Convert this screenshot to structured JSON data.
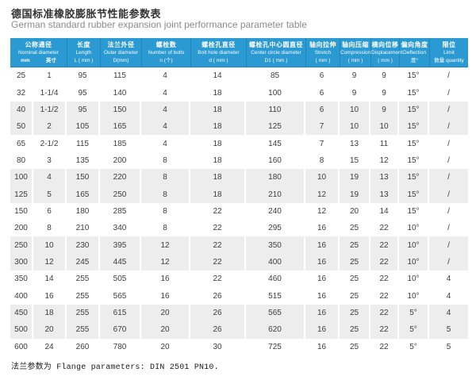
{
  "page": {
    "title_zh": "德国标准橡胶膨胀节性能参数表",
    "title_en": "German standard rubber expansion joint performance parameter table",
    "footer_note": "法兰参数为 Flange parameters: DIN 2501 PN10."
  },
  "colors": {
    "header_bg": "#2C9AD2",
    "header_divider": "#1E86B9",
    "row_alt_bg": "#EDEDED",
    "title_text": "#333333",
    "subtitle_text": "#8C8C8C",
    "body_text": "#3D3D3D",
    "footer_text": "#1A1A1A"
  },
  "table": {
    "columns": [
      {
        "zh": "公称通径",
        "en": "Nominal diameter",
        "unit_left": "mm",
        "unit_right": "英寸"
      },
      {
        "zh": "长度",
        "en": "Length",
        "unit": "L ( mm )"
      },
      {
        "zh": "法兰外径",
        "en": "Outer diameter",
        "unit": "D(mm)"
      },
      {
        "zh": "螺栓数",
        "en": "Number of bolts",
        "unit": "n (个)"
      },
      {
        "zh": "螺栓孔直径",
        "en": "Bolt hole diameter",
        "unit": "d ( mm )"
      },
      {
        "zh": "螺栓孔中心圆直径",
        "en": "Center circle diameter",
        "unit": "D1 ( mm )"
      },
      {
        "zh": "轴向拉伸",
        "en": "Stretch",
        "unit": "( mm )"
      },
      {
        "zh": "轴向压缩",
        "en": "Compression",
        "unit": "( mm )"
      },
      {
        "zh": "横向位移",
        "en": "Displacement",
        "unit": "( mm )"
      },
      {
        "zh": "偏向角度",
        "en": "Deflection",
        "unit": "度°"
      },
      {
        "zh": "限位",
        "en": "Limit",
        "unit": "数量 quantity"
      }
    ],
    "rows": [
      [
        "25",
        "1",
        "95",
        "115",
        "4",
        "14",
        "85",
        "6",
        "9",
        "9",
        "15°",
        "/"
      ],
      [
        "32",
        "1-1/4",
        "95",
        "140",
        "4",
        "18",
        "100",
        "6",
        "9",
        "9",
        "15°",
        "/"
      ],
      [
        "40",
        "1-1/2",
        "95",
        "150",
        "4",
        "18",
        "110",
        "6",
        "10",
        "9",
        "15°",
        "/"
      ],
      [
        "50",
        "2",
        "105",
        "165",
        "4",
        "18",
        "125",
        "7",
        "10",
        "10",
        "15°",
        "/"
      ],
      [
        "65",
        "2-1/2",
        "115",
        "185",
        "4",
        "18",
        "145",
        "7",
        "13",
        "11",
        "15°",
        "/"
      ],
      [
        "80",
        "3",
        "135",
        "200",
        "8",
        "18",
        "160",
        "8",
        "15",
        "12",
        "15°",
        "/"
      ],
      [
        "100",
        "4",
        "150",
        "220",
        "8",
        "18",
        "180",
        "10",
        "19",
        "13",
        "15°",
        "/"
      ],
      [
        "125",
        "5",
        "165",
        "250",
        "8",
        "18",
        "210",
        "12",
        "19",
        "13",
        "15°",
        "/"
      ],
      [
        "150",
        "6",
        "180",
        "285",
        "8",
        "22",
        "240",
        "12",
        "20",
        "14",
        "15°",
        "/"
      ],
      [
        "200",
        "8",
        "210",
        "340",
        "8",
        "22",
        "295",
        "16",
        "25",
        "22",
        "10°",
        "/"
      ],
      [
        "250",
        "10",
        "230",
        "395",
        "12",
        "22",
        "350",
        "16",
        "25",
        "22",
        "10°",
        "/"
      ],
      [
        "300",
        "12",
        "245",
        "445",
        "12",
        "22",
        "400",
        "16",
        "25",
        "22",
        "10°",
        "/"
      ],
      [
        "350",
        "14",
        "255",
        "505",
        "16",
        "22",
        "460",
        "16",
        "25",
        "22",
        "10°",
        "4"
      ],
      [
        "400",
        "16",
        "255",
        "565",
        "16",
        "26",
        "515",
        "16",
        "25",
        "22",
        "10°",
        "4"
      ],
      [
        "450",
        "18",
        "255",
        "615",
        "20",
        "26",
        "565",
        "16",
        "25",
        "22",
        "5°",
        "4"
      ],
      [
        "500",
        "20",
        "255",
        "670",
        "20",
        "26",
        "620",
        "16",
        "25",
        "22",
        "5°",
        "5"
      ],
      [
        "600",
        "24",
        "260",
        "780",
        "20",
        "30",
        "725",
        "16",
        "25",
        "22",
        "5°",
        "5"
      ]
    ]
  }
}
